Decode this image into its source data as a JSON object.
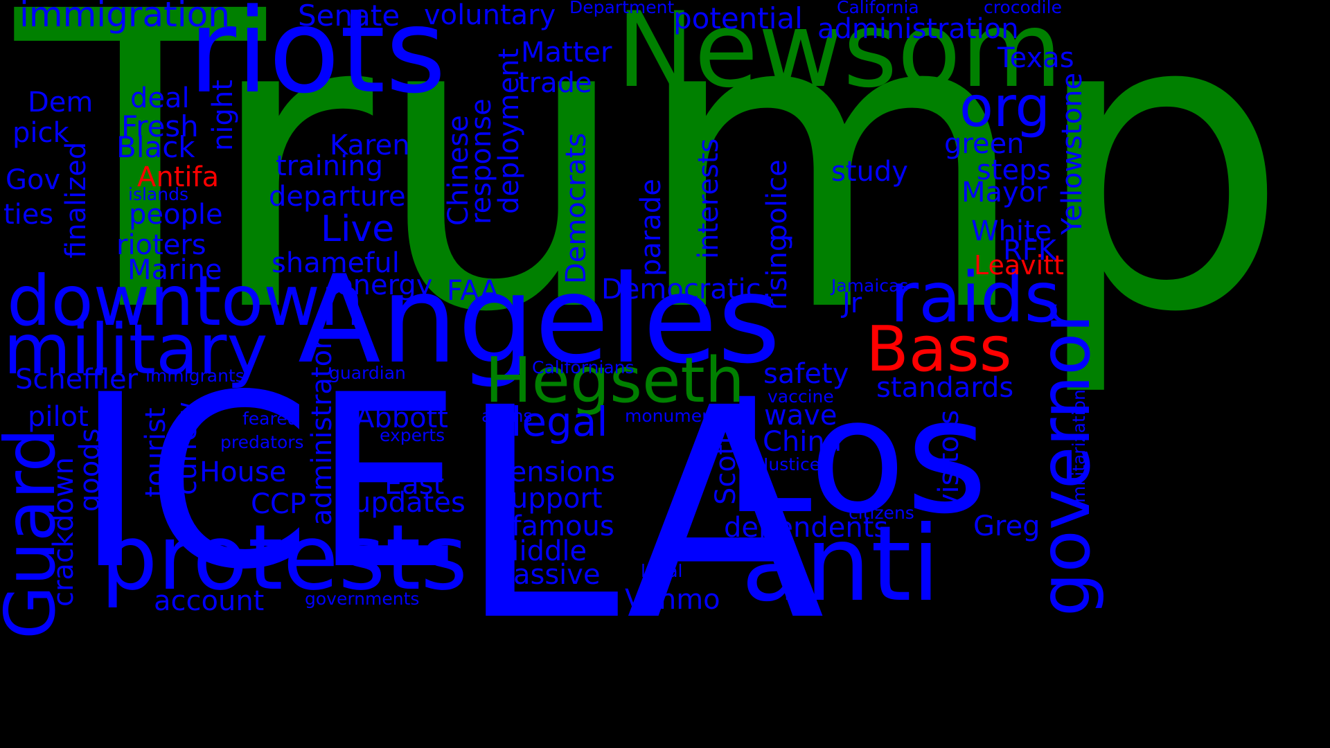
{
  "colors": {
    "background": "#000000",
    "blue": "#0000ff",
    "green": "#008000",
    "red": "#ff0000"
  },
  "words": [
    {
      "id": "trump",
      "text": "Trump",
      "color": "green",
      "vertical": false
    },
    {
      "id": "ice",
      "text": "ICE",
      "color": "blue",
      "vertical": false
    },
    {
      "id": "la",
      "text": "LA",
      "color": "blue",
      "vertical": false
    },
    {
      "id": "los",
      "text": "Los",
      "color": "blue",
      "vertical": false
    },
    {
      "id": "angeles",
      "text": "Angeles",
      "color": "blue",
      "vertical": false
    },
    {
      "id": "riots",
      "text": "riots",
      "color": "blue",
      "vertical": false
    },
    {
      "id": "newsom",
      "text": "Newsom",
      "color": "green",
      "vertical": false
    },
    {
      "id": "protests",
      "text": "protests",
      "color": "blue",
      "vertical": false
    },
    {
      "id": "anti",
      "text": "anti",
      "color": "blue",
      "vertical": false
    },
    {
      "id": "downtown",
      "text": "downtown",
      "color": "blue",
      "vertical": false
    },
    {
      "id": "military",
      "text": "military",
      "color": "blue",
      "vertical": false
    },
    {
      "id": "raids",
      "text": "raids",
      "color": "blue",
      "vertical": false
    },
    {
      "id": "hegseth",
      "text": "Hegseth",
      "color": "green",
      "vertical": false
    },
    {
      "id": "bass",
      "text": "Bass",
      "color": "red",
      "vertical": false
    },
    {
      "id": "governor",
      "text": "governor",
      "color": "blue",
      "vertical": true
    },
    {
      "id": "guard",
      "text": "Guard",
      "color": "blue",
      "vertical": true
    },
    {
      "id": "org",
      "text": "org",
      "color": "blue",
      "vertical": false
    },
    {
      "id": "illegal",
      "text": "illegal",
      "color": "blue",
      "vertical": false
    },
    {
      "id": "live",
      "text": "Live",
      "color": "blue",
      "vertical": false
    },
    {
      "id": "immigration",
      "text": "immigration",
      "color": "blue",
      "vertical": false
    },
    {
      "id": "senate",
      "text": "Senate",
      "color": "blue",
      "vertical": false
    },
    {
      "id": "voluntary",
      "text": "voluntary",
      "color": "blue",
      "vertical": false
    },
    {
      "id": "department",
      "text": "Department",
      "color": "blue",
      "vertical": false
    },
    {
      "id": "potential",
      "text": "potential",
      "color": "blue",
      "vertical": false
    },
    {
      "id": "california",
      "text": "California",
      "color": "blue",
      "vertical": false
    },
    {
      "id": "crocodile",
      "text": "crocodile",
      "color": "blue",
      "vertical": false
    },
    {
      "id": "administration",
      "text": "administration",
      "color": "blue",
      "vertical": false
    },
    {
      "id": "texas",
      "text": "Texas",
      "color": "blue",
      "vertical": false
    },
    {
      "id": "matter",
      "text": "Matter",
      "color": "blue",
      "vertical": false
    },
    {
      "id": "trade",
      "text": "trade",
      "color": "blue",
      "vertical": false
    },
    {
      "id": "dem",
      "text": "Dem",
      "color": "blue",
      "vertical": false
    },
    {
      "id": "deal",
      "text": "deal",
      "color": "blue",
      "vertical": false
    },
    {
      "id": "pick",
      "text": "pick",
      "color": "blue",
      "vertical": false
    },
    {
      "id": "fresh",
      "text": "Fresh",
      "color": "blue",
      "vertical": false
    },
    {
      "id": "black",
      "text": "Black",
      "color": "blue",
      "vertical": false
    },
    {
      "id": "gov",
      "text": "Gov",
      "color": "blue",
      "vertical": false
    },
    {
      "id": "antifa",
      "text": "Antifa",
      "color": "red",
      "vertical": false
    },
    {
      "id": "islands",
      "text": "islands",
      "color": "blue",
      "vertical": false
    },
    {
      "id": "ties",
      "text": "ties",
      "color": "blue",
      "vertical": false
    },
    {
      "id": "people",
      "text": "people",
      "color": "blue",
      "vertical": false
    },
    {
      "id": "rioters",
      "text": "rioters",
      "color": "blue",
      "vertical": false
    },
    {
      "id": "marine",
      "text": "Marine",
      "color": "blue",
      "vertical": false
    },
    {
      "id": "karen",
      "text": "Karen",
      "color": "blue",
      "vertical": false
    },
    {
      "id": "training",
      "text": "training",
      "color": "blue",
      "vertical": false
    },
    {
      "id": "departure",
      "text": "departure",
      "color": "blue",
      "vertical": false
    },
    {
      "id": "shameful",
      "text": "shameful",
      "color": "blue",
      "vertical": false
    },
    {
      "id": "energy",
      "text": "energy",
      "color": "blue",
      "vertical": false
    },
    {
      "id": "faa",
      "text": "FAA",
      "color": "blue",
      "vertical": false
    },
    {
      "id": "study",
      "text": "study",
      "color": "blue",
      "vertical": false
    },
    {
      "id": "green",
      "text": "green",
      "color": "blue",
      "vertical": false
    },
    {
      "id": "steps",
      "text": "steps",
      "color": "blue",
      "vertical": false
    },
    {
      "id": "mayor",
      "text": "Mayor",
      "color": "blue",
      "vertical": false
    },
    {
      "id": "white",
      "text": "White",
      "color": "blue",
      "vertical": false
    },
    {
      "id": "rfk",
      "text": "RFK",
      "color": "blue",
      "vertical": false
    },
    {
      "id": "leavitt",
      "text": "Leavitt",
      "color": "red",
      "vertical": false
    },
    {
      "id": "democratic",
      "text": "Democratic",
      "color": "blue",
      "vertical": false
    },
    {
      "id": "jamaicas",
      "text": "Jamaicas",
      "color": "blue",
      "vertical": false
    },
    {
      "id": "jr",
      "text": "Jr",
      "color": "blue",
      "vertical": false
    },
    {
      "id": "scheffler",
      "text": "Scheffler",
      "color": "blue",
      "vertical": false
    },
    {
      "id": "immigrants",
      "text": "immigrants",
      "color": "blue",
      "vertical": false
    },
    {
      "id": "guardian",
      "text": "guardian",
      "color": "blue",
      "vertical": false
    },
    {
      "id": "californians",
      "text": "Californians",
      "color": "blue",
      "vertical": false
    },
    {
      "id": "safety",
      "text": "safety",
      "color": "blue",
      "vertical": false
    },
    {
      "id": "standards",
      "text": "standards",
      "color": "blue",
      "vertical": false
    },
    {
      "id": "vaccine",
      "text": "vaccine",
      "color": "blue",
      "vertical": false
    },
    {
      "id": "wave",
      "text": "wave",
      "color": "blue",
      "vertical": false
    },
    {
      "id": "pilot",
      "text": "pilot",
      "color": "blue",
      "vertical": false
    },
    {
      "id": "feared",
      "text": "feared",
      "color": "blue",
      "vertical": false
    },
    {
      "id": "abbott",
      "text": "Abbott",
      "color": "blue",
      "vertical": false
    },
    {
      "id": "aliens",
      "text": "aliens",
      "color": "blue",
      "vertical": false
    },
    {
      "id": "monuments",
      "text": "monuments",
      "color": "blue",
      "vertical": false
    },
    {
      "id": "experts",
      "text": "experts",
      "color": "blue",
      "vertical": false
    },
    {
      "id": "predators",
      "text": "predators",
      "color": "blue",
      "vertical": false
    },
    {
      "id": "china",
      "text": "China",
      "color": "blue",
      "vertical": false
    },
    {
      "id": "house",
      "text": "House",
      "color": "blue",
      "vertical": false
    },
    {
      "id": "justice",
      "text": "Justice",
      "color": "blue",
      "vertical": false
    },
    {
      "id": "east",
      "text": "East",
      "color": "blue",
      "vertical": false
    },
    {
      "id": "tensions",
      "text": "tensions",
      "color": "blue",
      "vertical": false
    },
    {
      "id": "ccp",
      "text": "CCP",
      "color": "blue",
      "vertical": false
    },
    {
      "id": "updates",
      "text": "updates",
      "color": "blue",
      "vertical": false
    },
    {
      "id": "support",
      "text": "support",
      "color": "blue",
      "vertical": false
    },
    {
      "id": "citizens",
      "text": "citizens",
      "color": "blue",
      "vertical": false
    },
    {
      "id": "infamous",
      "text": "infamous",
      "color": "blue",
      "vertical": false
    },
    {
      "id": "dependents",
      "text": "dependents",
      "color": "blue",
      "vertical": false
    },
    {
      "id": "greg",
      "text": "Greg",
      "color": "blue",
      "vertical": false
    },
    {
      "id": "middle",
      "text": "Middle",
      "color": "blue",
      "vertical": false
    },
    {
      "id": "massive",
      "text": "massive",
      "color": "blue",
      "vertical": false
    },
    {
      "id": "legal",
      "text": "legal",
      "color": "blue",
      "vertical": false
    },
    {
      "id": "account",
      "text": "account",
      "color": "blue",
      "vertical": false
    },
    {
      "id": "governments",
      "text": "governments",
      "color": "blue",
      "vertical": false
    },
    {
      "id": "venmo",
      "text": "Venmo",
      "color": "blue",
      "vertical": false
    },
    {
      "id": "night",
      "text": "night",
      "color": "blue",
      "vertical": true
    },
    {
      "id": "finalized",
      "text": "finalized",
      "color": "blue",
      "vertical": true
    },
    {
      "id": "chinese",
      "text": "Chinese",
      "color": "blue",
      "vertical": true
    },
    {
      "id": "response",
      "text": "response",
      "color": "blue",
      "vertical": true
    },
    {
      "id": "deployment",
      "text": "deployment",
      "color": "blue",
      "vertical": true
    },
    {
      "id": "democrats",
      "text": "Democrats",
      "color": "blue",
      "vertical": true
    },
    {
      "id": "parade",
      "text": "parade",
      "color": "blue",
      "vertical": true
    },
    {
      "id": "interests",
      "text": "interests",
      "color": "blue",
      "vertical": true
    },
    {
      "id": "police",
      "text": "police",
      "color": "blue",
      "vertical": true
    },
    {
      "id": "rising",
      "text": "rising",
      "color": "blue",
      "vertical": true
    },
    {
      "id": "yellowstone",
      "text": "Yellowstone",
      "color": "blue",
      "vertical": true
    },
    {
      "id": "administrator",
      "text": "administrator",
      "color": "blue",
      "vertical": true
    },
    {
      "id": "crackdown",
      "text": "crackdown",
      "color": "blue",
      "vertical": true
    },
    {
      "id": "goods",
      "text": "goods",
      "color": "blue",
      "vertical": true
    },
    {
      "id": "tourist",
      "text": "tourist",
      "color": "blue",
      "vertical": true
    },
    {
      "id": "curfew",
      "text": "curfew",
      "color": "blue",
      "vertical": true
    },
    {
      "id": "scottie",
      "text": "Scottie",
      "color": "blue",
      "vertical": true
    },
    {
      "id": "visitors",
      "text": "visitors",
      "color": "blue",
      "vertical": true
    },
    {
      "id": "militarization",
      "text": "militarization",
      "color": "blue",
      "vertical": true
    }
  ]
}
